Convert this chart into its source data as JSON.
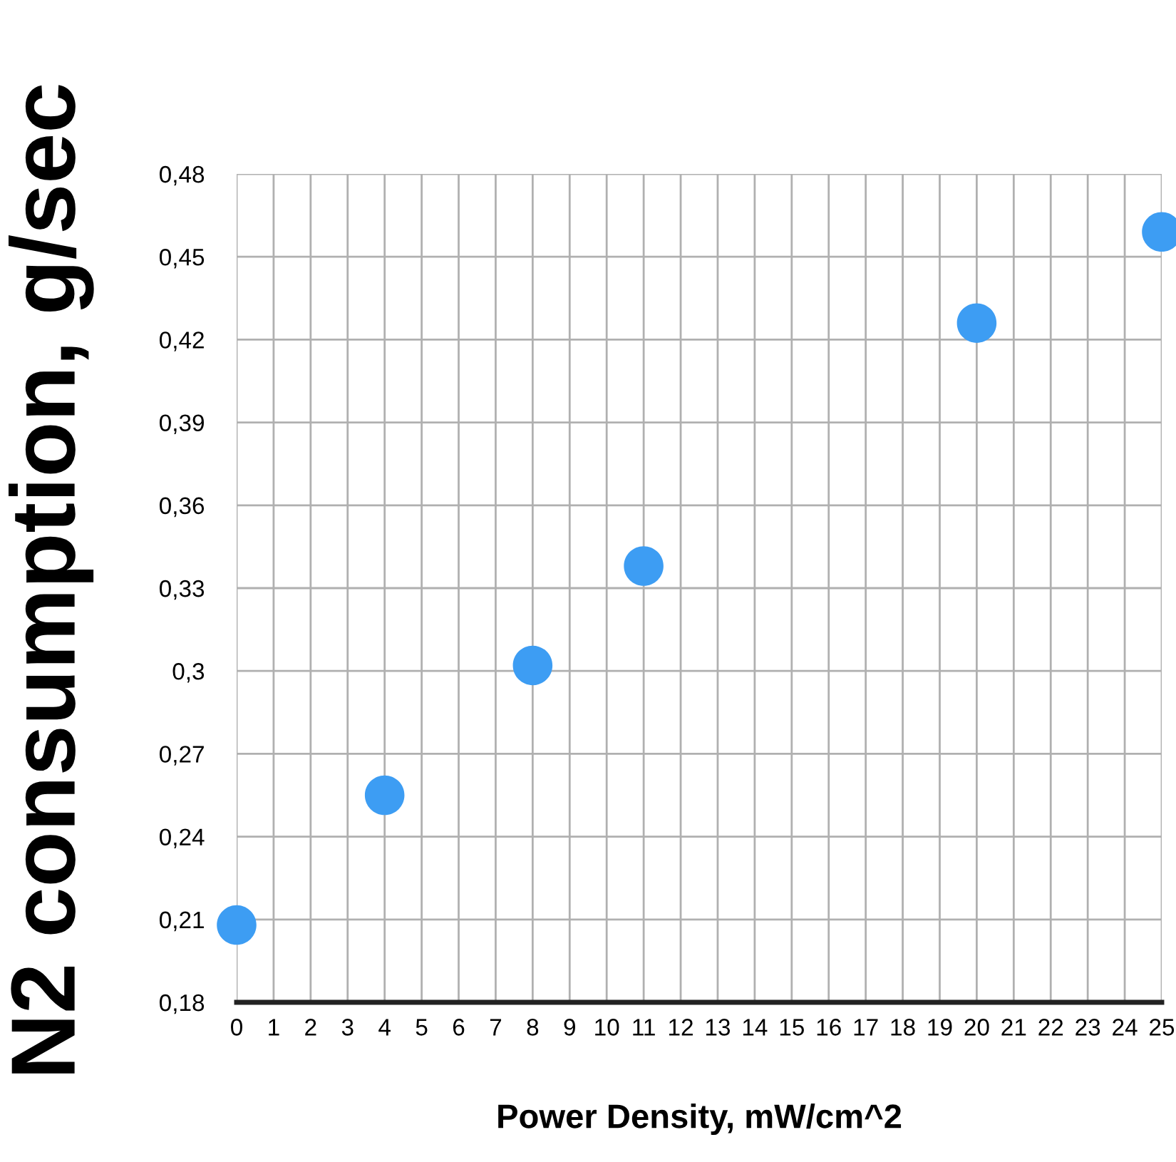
{
  "chart_data": {
    "type": "scatter",
    "ylabel": "N2 consumption, g/sec",
    "xlabel": "Power Density, mW/cm^2",
    "x": [
      0,
      4,
      8,
      11,
      20,
      25
    ],
    "values": [
      0.208,
      0.255,
      0.302,
      0.338,
      0.426,
      0.459
    ],
    "color": "#3d9df3",
    "marker": "circle",
    "grid": true,
    "xlim": [
      0,
      25
    ],
    "xticks": [
      0,
      1,
      2,
      3,
      4,
      5,
      6,
      7,
      8,
      9,
      10,
      11,
      12,
      13,
      14,
      15,
      16,
      17,
      18,
      19,
      20,
      21,
      22,
      23,
      24,
      25
    ],
    "ylim": [
      0.18,
      0.48
    ],
    "yticks": [
      {
        "value": 0.18,
        "label": "0,18"
      },
      {
        "value": 0.21,
        "label": "0,21"
      },
      {
        "value": 0.24,
        "label": "0,24"
      },
      {
        "value": 0.27,
        "label": "0,27"
      },
      {
        "value": 0.3,
        "label": "0,3"
      },
      {
        "value": 0.33,
        "label": "0,33"
      },
      {
        "value": 0.36,
        "label": "0,36"
      },
      {
        "value": 0.39,
        "label": "0,39"
      },
      {
        "value": 0.42,
        "label": "0,42"
      },
      {
        "value": 0.45,
        "label": "0,45"
      },
      {
        "value": 0.48,
        "label": "0,48"
      }
    ]
  }
}
